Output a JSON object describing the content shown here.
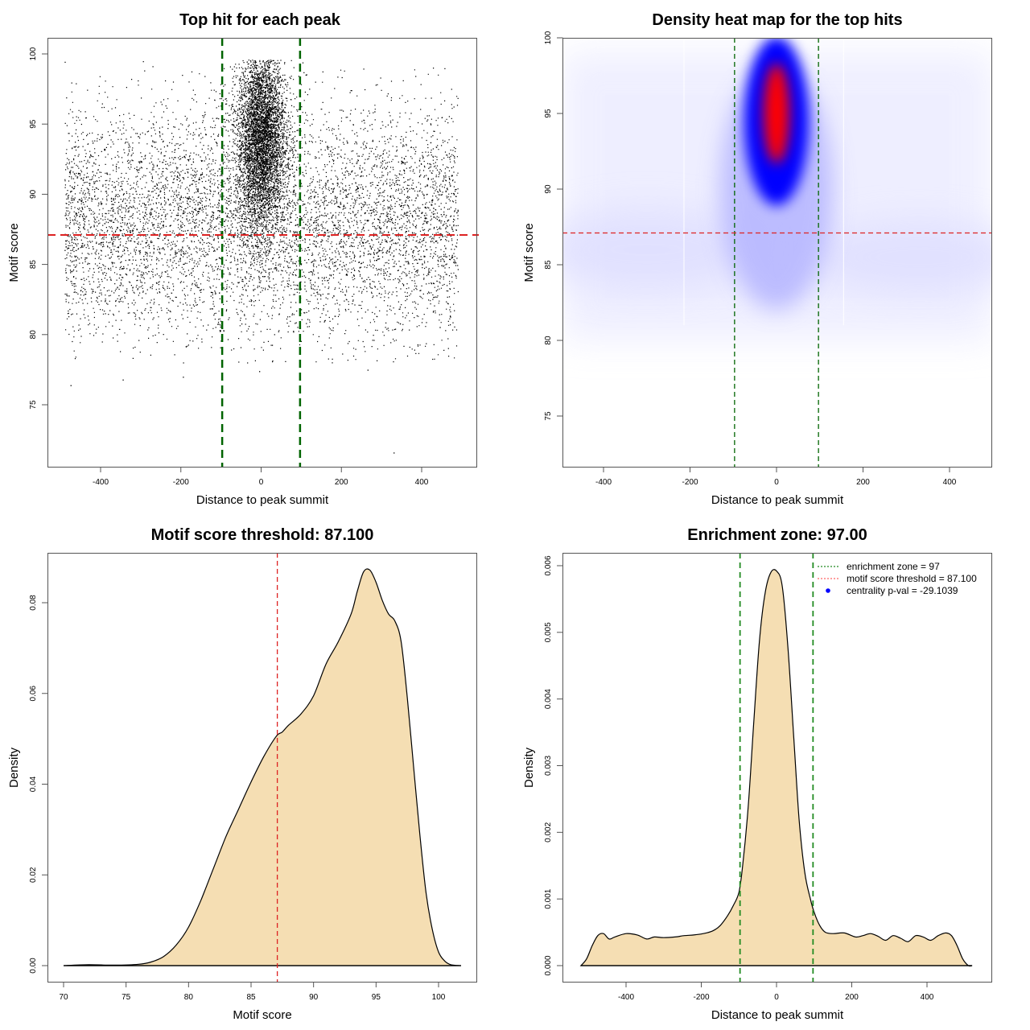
{
  "chart_data": [
    {
      "id": "scatter",
      "type": "scatter",
      "title": "Top hit for each peak",
      "xlabel": "Distance to peak summit",
      "ylabel": "Motif score",
      "xlim": [
        -500,
        500
      ],
      "ylim": [
        71,
        101
      ],
      "xticks": [
        -400,
        -200,
        0,
        200,
        400
      ],
      "yticks": [
        75,
        80,
        85,
        90,
        95,
        100
      ],
      "vlines": [
        -97,
        97
      ],
      "hline": 87.1,
      "point_cloud": {
        "background": {
          "x_range": [
            -490,
            490
          ],
          "y_range": [
            78,
            99.5
          ],
          "center_y": 88,
          "approx_count": 7000
        },
        "central": {
          "x_center": 0,
          "x_sd": 30,
          "y_center": 94,
          "y_sd": 3.2,
          "approx_count": 6000
        },
        "outliers": [
          [
            -475,
            76.4
          ],
          [
            -345,
            76.8
          ],
          [
            -195,
            77.0
          ],
          [
            330,
            71.6
          ],
          [
            -5,
            77.4
          ],
          [
            265,
            77.5
          ]
        ]
      },
      "colors": {
        "points": "#000000",
        "vline": "#006400",
        "hline": "#dd2222"
      }
    },
    {
      "id": "heatmap",
      "type": "heatmap",
      "title": "Density heat map for the top hits",
      "xlabel": "Distance to peak summit",
      "ylabel": "Motif score",
      "xlim": [
        -495,
        495
      ],
      "ylim": [
        71.7,
        100
      ],
      "xticks": [
        -400,
        -200,
        0,
        200,
        400
      ],
      "yticks": [
        75,
        80,
        85,
        90,
        95,
        100
      ],
      "vlines": [
        -97,
        97
      ],
      "hline": 87.1,
      "hotspot": {
        "x": 0,
        "y": 95,
        "x_spread": 35,
        "y_spread": 3.5
      },
      "color_scale": [
        "#ffffff",
        "#0000ff",
        "#ff0000"
      ]
    },
    {
      "id": "score-density",
      "type": "area",
      "title": "Motif score threshold: 87.100",
      "xlabel": "Motif score",
      "ylabel": "Density",
      "xlim": [
        68.7,
        102.9
      ],
      "ylim": [
        0,
        0.091
      ],
      "xticks": [
        70,
        75,
        80,
        85,
        90,
        95,
        100
      ],
      "yticks": [
        "0.00",
        "0.02",
        "0.04",
        "0.06",
        "0.08"
      ],
      "vline": 87.1,
      "x": [
        70,
        72,
        74,
        76,
        77,
        78,
        79,
        80,
        81,
        82,
        83,
        84,
        85,
        86,
        87,
        87.5,
        88,
        89,
        90,
        91,
        92,
        93,
        93.5,
        94,
        94.5,
        95,
        95.5,
        96,
        96.5,
        97,
        97.5,
        98,
        98.5,
        99,
        99.5,
        100,
        100.5,
        101,
        101.8
      ],
      "y": [
        0,
        0.0002,
        0.0001,
        0.0003,
        0.0008,
        0.002,
        0.0045,
        0.0085,
        0.0145,
        0.0215,
        0.0285,
        0.0345,
        0.0405,
        0.046,
        0.0505,
        0.0515,
        0.053,
        0.0555,
        0.0595,
        0.0665,
        0.0715,
        0.0775,
        0.0825,
        0.0868,
        0.0872,
        0.0845,
        0.0805,
        0.0775,
        0.076,
        0.0715,
        0.059,
        0.044,
        0.029,
        0.016,
        0.008,
        0.003,
        0.001,
        0.0002,
        0
      ],
      "colors": {
        "fill": "#f5deb3",
        "line": "#000000",
        "vline": "#dd2222"
      }
    },
    {
      "id": "distance-density",
      "type": "area",
      "title": "Enrichment zone: 97.00",
      "xlabel": "Distance to peak summit",
      "ylabel": "Density",
      "xlim": [
        -571,
        571
      ],
      "ylim": [
        0,
        0.00615
      ],
      "xticks": [
        -400,
        -200,
        0,
        200,
        400
      ],
      "yticks": [
        "0.000",
        "0.001",
        "0.002",
        "0.003",
        "0.004",
        "0.005",
        "0.006"
      ],
      "vlines": [
        -97,
        97
      ],
      "x": [
        -520,
        -505,
        -490,
        -475,
        -460,
        -445,
        -430,
        -400,
        -370,
        -345,
        -325,
        -300,
        -270,
        -245,
        -220,
        -195,
        -170,
        -150,
        -130,
        -115,
        -100,
        -90,
        -75,
        -60,
        -45,
        -30,
        -15,
        0,
        15,
        30,
        45,
        60,
        75,
        90,
        100,
        115,
        130,
        150,
        180,
        210,
        230,
        250,
        270,
        290,
        310,
        330,
        350,
        370,
        390,
        410,
        430,
        450,
        465,
        480,
        495,
        510,
        520
      ],
      "y": [
        0,
        0.0001,
        0.0003,
        0.00045,
        0.00048,
        0.0004,
        0.00043,
        0.00048,
        0.00046,
        0.0004,
        0.00043,
        0.00042,
        0.00043,
        0.00045,
        0.00046,
        0.00048,
        0.00052,
        0.0006,
        0.00075,
        0.0009,
        0.0011,
        0.0015,
        0.0024,
        0.0037,
        0.0049,
        0.0056,
        0.0059,
        0.00592,
        0.0057,
        0.0048,
        0.0035,
        0.0022,
        0.0014,
        0.001,
        0.0008,
        0.0006,
        0.0005,
        0.00048,
        0.00049,
        0.00043,
        0.00045,
        0.00048,
        0.00044,
        0.00038,
        0.00045,
        0.00041,
        0.00036,
        0.00045,
        0.00043,
        0.00038,
        0.00045,
        0.00049,
        0.00045,
        0.0003,
        0.0001,
        0,
        0
      ],
      "legend": {
        "position": "top-right",
        "entries": [
          {
            "label": "enrichment zone = 97",
            "symbol": "dotted-line",
            "color": "#228b22"
          },
          {
            "label": "motif score threshold = 87.100",
            "symbol": "dotted-line",
            "color": "#ff6666"
          },
          {
            "label": "centrality p-val = -29.1039",
            "symbol": "dot",
            "color": "#0000ff"
          }
        ]
      },
      "colors": {
        "fill": "#f5deb3",
        "line": "#000000",
        "vline": "#228b22"
      }
    }
  ]
}
